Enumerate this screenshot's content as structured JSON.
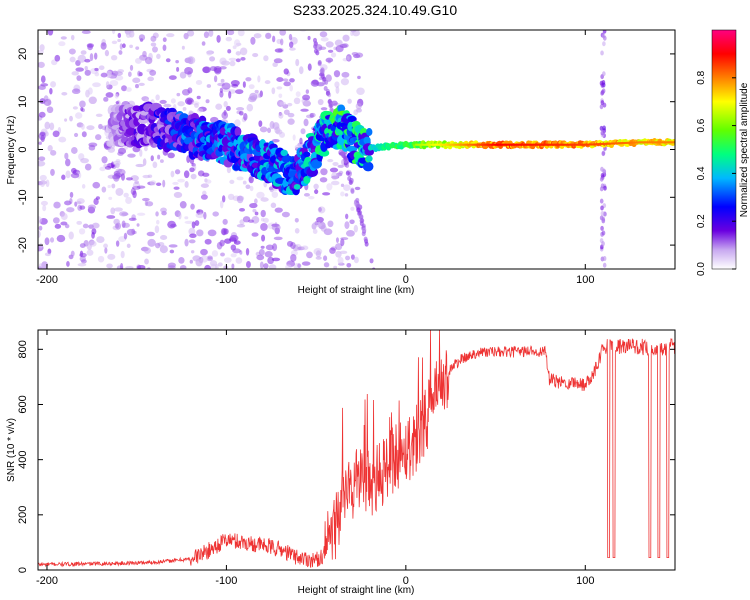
{
  "title": "S233.2025.324.10.49.G10",
  "chart_data": [
    {
      "type": "heatmap",
      "title": "",
      "xlabel": "Height of straight line (km)",
      "ylabel": "Frequency (Hz)",
      "xlim": [
        -205,
        150
      ],
      "ylim": [
        -25,
        25
      ],
      "xticks": [
        -200,
        -100,
        0,
        100
      ],
      "yticks": [
        -20,
        -10,
        0,
        10,
        20
      ],
      "colorbar": {
        "label": "Normalized spectral amplitude",
        "range": [
          0.0,
          1.0
        ],
        "ticks": [
          0.0,
          0.2,
          0.4,
          0.6,
          0.8
        ],
        "colors": [
          "#ffffff",
          "#c8a8f0",
          "#6a00e0",
          "#0000ff",
          "#00b8ff",
          "#00ff80",
          "#60ff00",
          "#ffff00",
          "#ff8000",
          "#ff0000",
          "#ff0080"
        ]
      },
      "ridge": [
        {
          "x": -160,
          "y": 5,
          "z": 0.1
        },
        {
          "x": -140,
          "y": 5,
          "z": 0.2
        },
        {
          "x": -120,
          "y": 3,
          "z": 0.3
        },
        {
          "x": -100,
          "y": 1,
          "z": 0.3
        },
        {
          "x": -80,
          "y": -2,
          "z": 0.35
        },
        {
          "x": -62,
          "y": -6,
          "z": 0.35
        },
        {
          "x": -45,
          "y": 3,
          "z": 0.4
        },
        {
          "x": -35,
          "y": 5,
          "z": 0.45
        },
        {
          "x": -25,
          "y": 0,
          "z": 0.4
        },
        {
          "x": 0,
          "y": 1,
          "z": 0.55
        },
        {
          "x": 50,
          "y": 1,
          "z": 0.85
        },
        {
          "x": 100,
          "y": 1,
          "z": 0.8
        },
        {
          "x": 130,
          "y": 1.5,
          "z": 0.75
        },
        {
          "x": 150,
          "y": 1.5,
          "z": 0.75
        }
      ]
    },
    {
      "type": "line",
      "title": "",
      "xlabel": "Height of straight line (km)",
      "ylabel": "SNR (10 * v/v)",
      "xlim": [
        -205,
        150
      ],
      "ylim": [
        0,
        870
      ],
      "xticks": [
        -200,
        -100,
        0,
        100
      ],
      "yticks": [
        0,
        200,
        400,
        600,
        800
      ],
      "color": "#ee3333",
      "series": [
        {
          "x": [
            -205,
            -180,
            -160,
            -140,
            -120,
            -110,
            -100,
            -90,
            -80,
            -70,
            -60,
            -50,
            -45,
            -40,
            -35,
            -30,
            -25,
            -20,
            -15,
            -10,
            -5,
            0,
            5,
            10,
            15,
            20,
            25,
            30,
            40,
            50,
            60,
            70,
            78,
            80,
            85,
            90,
            95,
            100,
            105,
            110,
            115,
            120,
            130,
            140,
            150
          ],
          "y": [
            20,
            22,
            24,
            28,
            40,
            70,
            110,
            100,
            90,
            75,
            45,
            35,
            60,
            150,
            250,
            300,
            340,
            300,
            330,
            380,
            420,
            440,
            470,
            540,
            600,
            670,
            730,
            760,
            790,
            790,
            790,
            795,
            790,
            690,
            680,
            680,
            680,
            670,
            720,
            810,
            810,
            810,
            810,
            800,
            810
          ]
        }
      ],
      "dropouts": [
        {
          "x": 113,
          "y": 45
        },
        {
          "x": 116,
          "y": 45
        },
        {
          "x": 136,
          "y": 45
        },
        {
          "x": 141,
          "y": 45
        },
        {
          "x": 146,
          "y": 45
        }
      ]
    }
  ]
}
